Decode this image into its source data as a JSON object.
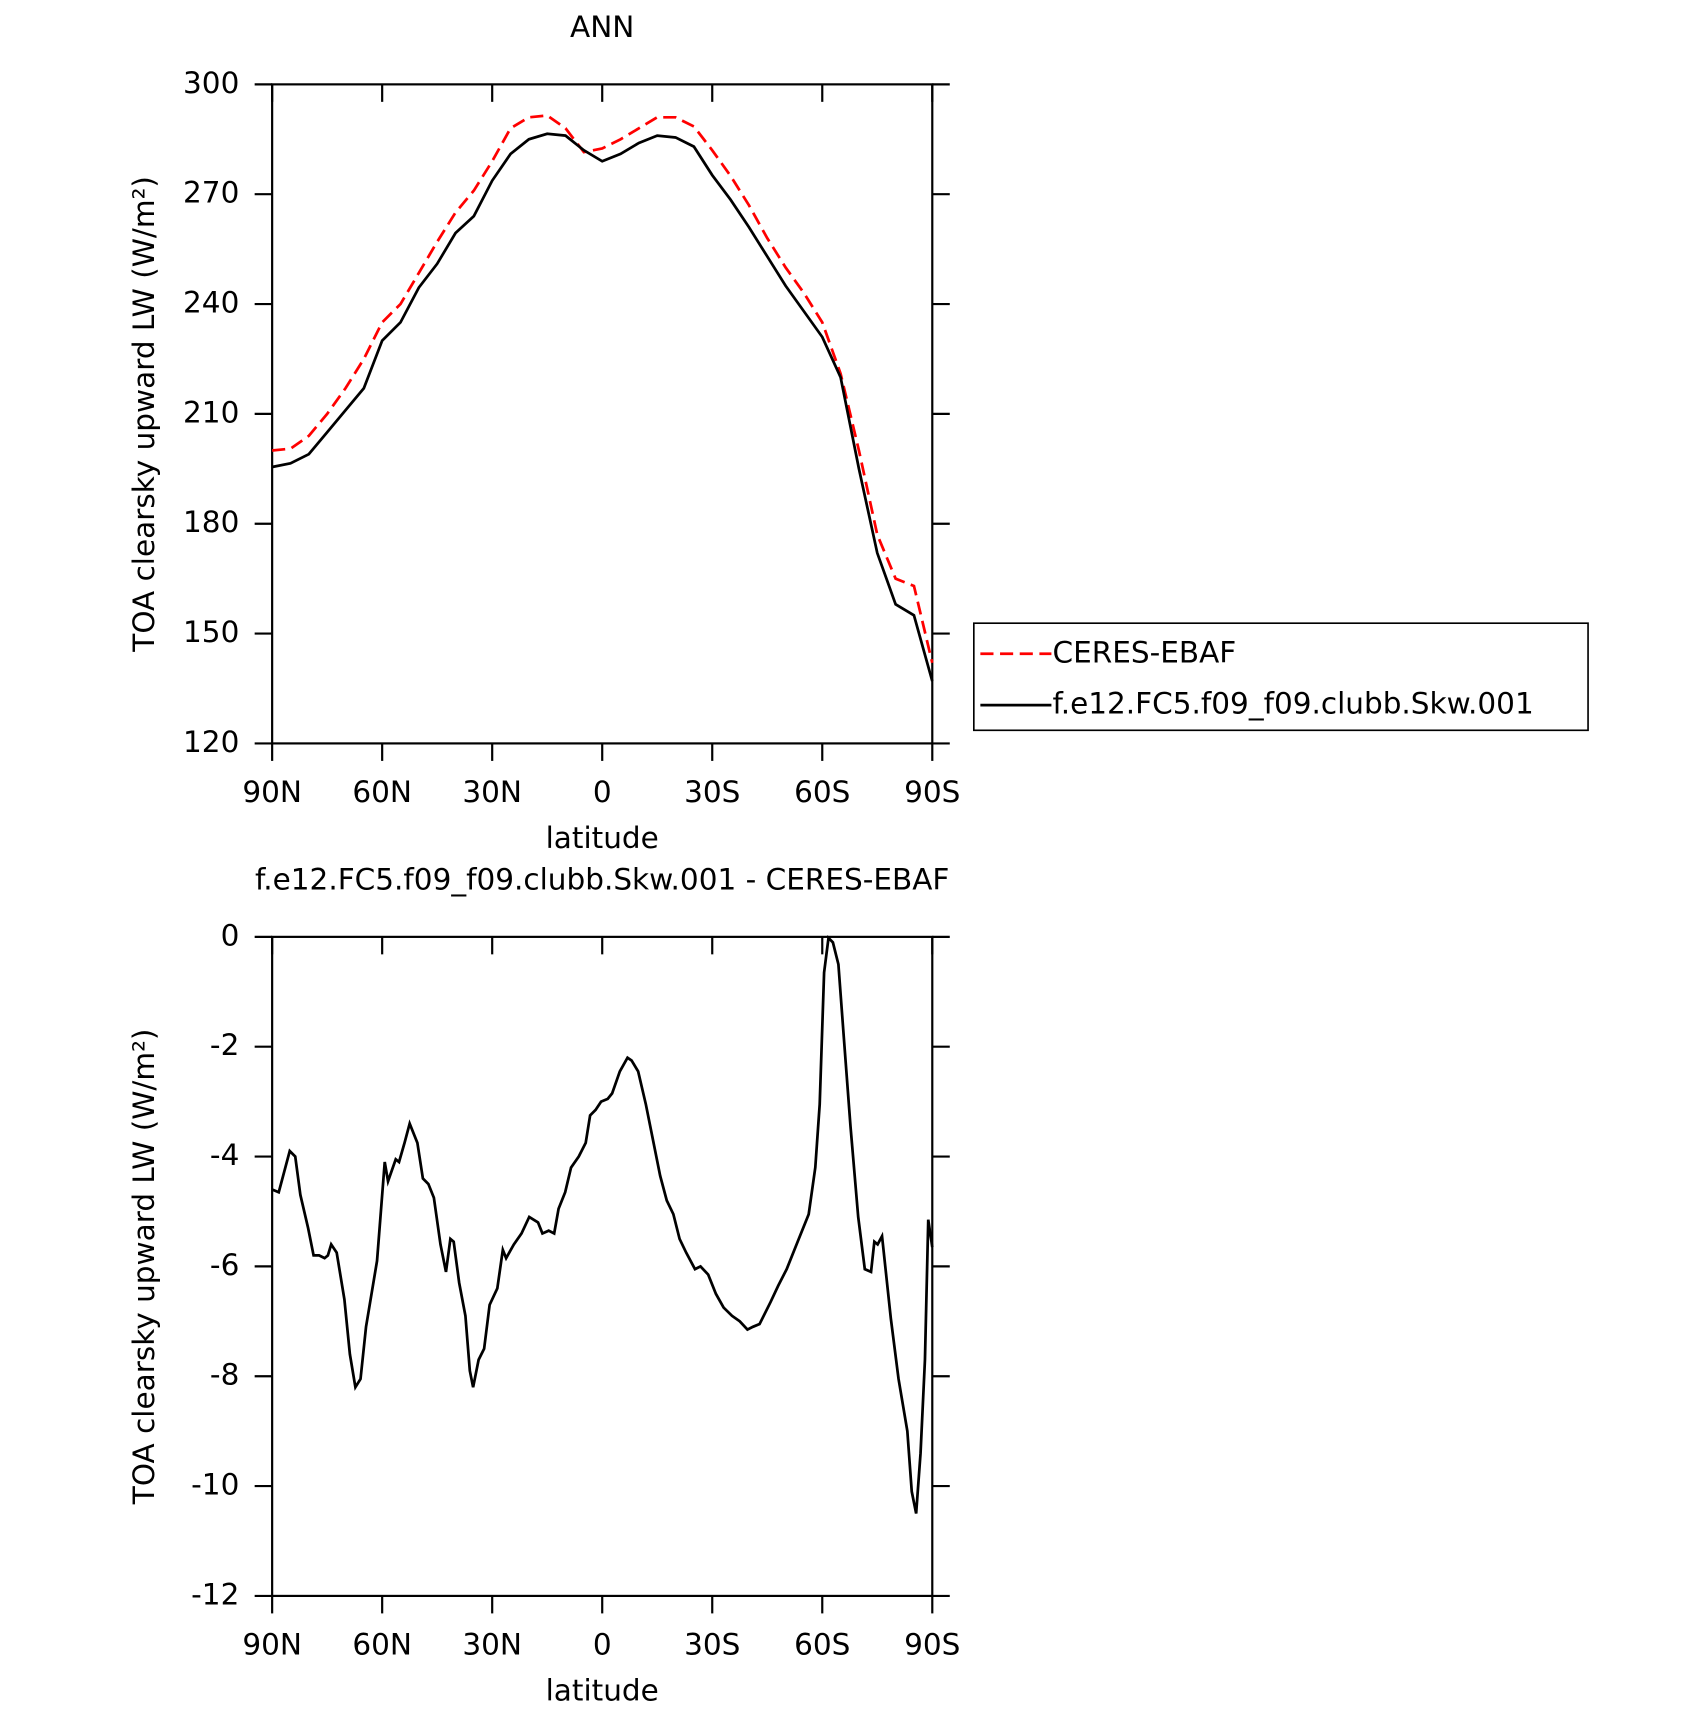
{
  "chart_data": [
    {
      "type": "line",
      "title": "ANN",
      "x_label": "latitude",
      "y_label": "TOA clearsky upward LW (W/m²)",
      "x": [
        90,
        85,
        80,
        75,
        70,
        65,
        60,
        55,
        50,
        45,
        40,
        35,
        30,
        25,
        20,
        15,
        10,
        5,
        0,
        -5,
        -10,
        -15,
        -20,
        -25,
        -30,
        -35,
        -40,
        -45,
        -50,
        -55,
        -60,
        -65,
        -70,
        -75,
        -80,
        -85,
        -90
      ],
      "series": [
        {
          "name": "CERES-EBAF",
          "color": "#ff0000",
          "linestyle": "dashed",
          "values": [
            200,
            200.5,
            204,
            210,
            217,
            225,
            235,
            240,
            248.5,
            257,
            265,
            271,
            279,
            288,
            291,
            291.5,
            288,
            281.5,
            282.5,
            285,
            288,
            291,
            291,
            288.5,
            282,
            275,
            267,
            258,
            250,
            243,
            235,
            221,
            200,
            177,
            165,
            163,
            142
          ]
        },
        {
          "name": "f.e12.FC5.f09_f09.clubb.Skw.001",
          "color": "#000000",
          "linestyle": "solid",
          "values": [
            195.5,
            196.5,
            199,
            205,
            211,
            217,
            230,
            235,
            244.5,
            251,
            259.4,
            264,
            273.7,
            281,
            285,
            286.5,
            286,
            282,
            279,
            281,
            284,
            286,
            285.5,
            283,
            275.2,
            268.5,
            261,
            253,
            245,
            238,
            231,
            220,
            195,
            172,
            158,
            155,
            137
          ]
        }
      ],
      "xlim": [
        90,
        -90
      ],
      "xticks": [
        {
          "value": 90,
          "label": "90N"
        },
        {
          "value": 60,
          "label": "60N"
        },
        {
          "value": 30,
          "label": "30N"
        },
        0,
        {
          "value": -30,
          "label": "30S"
        },
        {
          "value": -60,
          "label": "60S"
        },
        {
          "value": -90,
          "label": "90S"
        }
      ],
      "ylim": [
        120,
        300
      ],
      "yticks": [
        120,
        150,
        180,
        210,
        240,
        270,
        300
      ],
      "legend": "right"
    },
    {
      "type": "line",
      "title": "f.e12.FC5.f09_f09.clubb.Skw.001 - CERES-EBAF",
      "x_label": "latitude",
      "y_label": "TOA clearsky upward LW (W/m²)",
      "x": [
        90,
        88.2,
        85.2,
        83.7,
        82.3,
        80.2,
        78.7,
        77.2,
        75.7,
        74.8,
        73.9,
        72.4,
        70.3,
        68.8,
        67.3,
        65.9,
        64.4,
        61.4,
        59.3,
        58.4,
        56.3,
        55.4,
        53.9,
        52.5,
        50.4,
        48.9,
        47.4,
        45.9,
        44.1,
        42.6,
        41.4,
        40.5,
        39.0,
        37.3,
        36.1,
        35.2,
        33.7,
        32.2,
        30.7,
        28.6,
        27.1,
        26.2,
        24.1,
        22.0,
        19.9,
        17.5,
        16.3,
        14.6,
        13.1,
        11.9,
        10.1,
        8.5,
        6.4,
        4.5,
        3.3,
        1.8,
        0.3,
        -1.5,
        -2.7,
        -4.8,
        -6.9,
        -8.0,
        -9.8,
        -11.9,
        -13.7,
        -15.8,
        -17.6,
        -19.4,
        -21.1,
        -22.9,
        -25.3,
        -26.8,
        -28.9,
        -31.0,
        -33.1,
        -35.4,
        -37.5,
        -39.6,
        -41.1,
        -42.9,
        -45.9,
        -48.0,
        -50.3,
        -53.3,
        -56.3,
        -58.1,
        -59.3,
        -60.5,
        -61.7,
        -62.9,
        -64.4,
        -65.9,
        -67.7,
        -69.8,
        -71.6,
        -73.3,
        -74.2,
        -75.1,
        -76.3,
        -78.7,
        -80.8,
        -83.2,
        -84.4,
        -85.6,
        -86.8,
        -88.0,
        -88.9,
        -90
      ],
      "series": [
        {
          "name": "f.e12.FC5.f09_f09.clubb.Skw.001 - CERES-EBAF",
          "color": "#000000",
          "linestyle": "solid",
          "values": [
            -4.6,
            -4.65,
            -3.9,
            -4.0,
            -4.7,
            -5.3,
            -5.8,
            -5.8,
            -5.85,
            -5.8,
            -5.6,
            -5.75,
            -6.6,
            -7.6,
            -8.2,
            -8.05,
            -7.1,
            -5.9,
            -4.1,
            -4.45,
            -4.05,
            -4.1,
            -3.75,
            -3.4,
            -3.75,
            -4.4,
            -4.5,
            -4.75,
            -5.6,
            -6.1,
            -5.5,
            -5.55,
            -6.3,
            -6.9,
            -7.9,
            -8.2,
            -7.7,
            -7.5,
            -6.7,
            -6.4,
            -5.7,
            -5.85,
            -5.6,
            -5.4,
            -5.1,
            -5.2,
            -5.4,
            -5.35,
            -5.4,
            -4.95,
            -4.65,
            -4.2,
            -4.0,
            -3.75,
            -3.25,
            -3.15,
            -3.0,
            -2.95,
            -2.85,
            -2.45,
            -2.2,
            -2.25,
            -2.45,
            -3.05,
            -3.65,
            -4.35,
            -4.8,
            -5.05,
            -5.5,
            -5.75,
            -6.05,
            -6.0,
            -6.15,
            -6.5,
            -6.75,
            -6.9,
            -7.0,
            -7.15,
            -7.1,
            -7.05,
            -6.65,
            -6.35,
            -6.05,
            -5.55,
            -5.05,
            -4.2,
            -3.05,
            -0.65,
            -0.02,
            -0.1,
            -0.5,
            -1.85,
            -3.45,
            -5.1,
            -6.05,
            -6.1,
            -5.55,
            -5.6,
            -5.45,
            -6.95,
            -8.05,
            -9.0,
            -10.1,
            -10.5,
            -9.4,
            -7.7,
            -5.15,
            -5.65
          ]
        }
      ],
      "xlim": [
        90,
        -90
      ],
      "xticks": [
        {
          "value": 90,
          "label": "90N"
        },
        {
          "value": 60,
          "label": "60N"
        },
        {
          "value": 30,
          "label": "30N"
        },
        0,
        {
          "value": -30,
          "label": "30S"
        },
        {
          "value": -60,
          "label": "60S"
        },
        {
          "value": -90,
          "label": "90S"
        }
      ],
      "ylim": [
        -12,
        0
      ],
      "yticks": [
        -12,
        -10,
        -8,
        -6,
        -4,
        -2,
        0
      ]
    }
  ]
}
